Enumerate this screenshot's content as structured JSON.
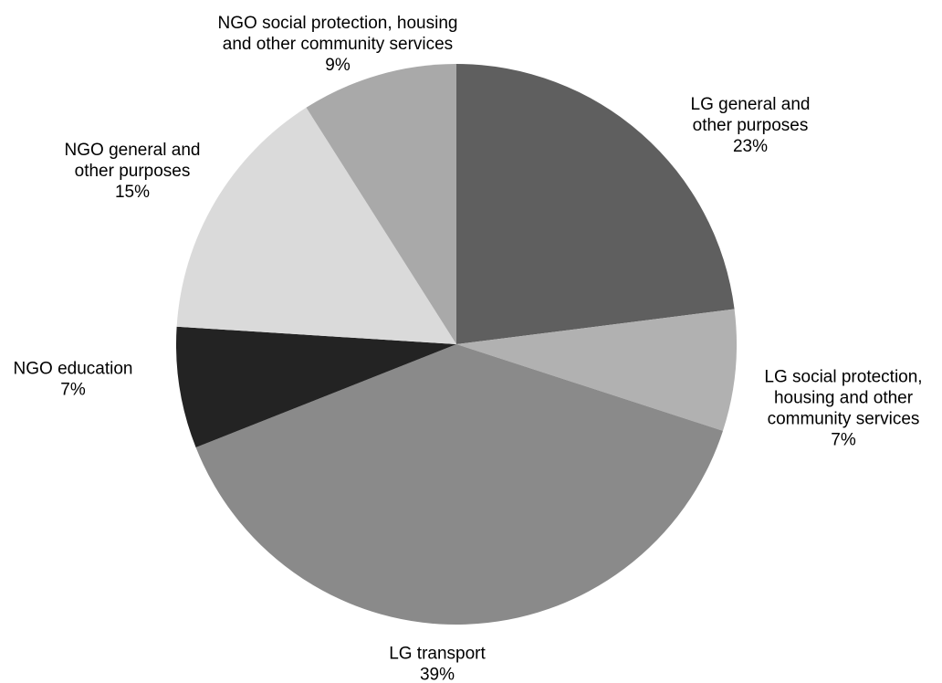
{
  "chart_data": {
    "type": "pie",
    "start_angle_deg": 0,
    "direction": "clockwise",
    "slices": [
      {
        "label": [
          "LG general and",
          "other purposes"
        ],
        "value_label": "23%",
        "value": 23,
        "color": "#5f5f5f"
      },
      {
        "label": [
          "LG social protection,",
          "housing and other",
          "community services"
        ],
        "value_label": "7%",
        "value": 7,
        "color": "#b1b1b1"
      },
      {
        "label": [
          "LG transport"
        ],
        "value_label": "39%",
        "value": 39,
        "color": "#8a8a8a"
      },
      {
        "label": [
          "NGO education"
        ],
        "value_label": "7%",
        "value": 7,
        "color": "#232323"
      },
      {
        "label": [
          "NGO general and",
          "other purposes"
        ],
        "value_label": "15%",
        "value": 15,
        "color": "#dadada"
      },
      {
        "label": [
          "NGO social protection, housing",
          "and other community services"
        ],
        "value_label": "9%",
        "value": 9,
        "color": "#a9a9a9"
      }
    ]
  }
}
